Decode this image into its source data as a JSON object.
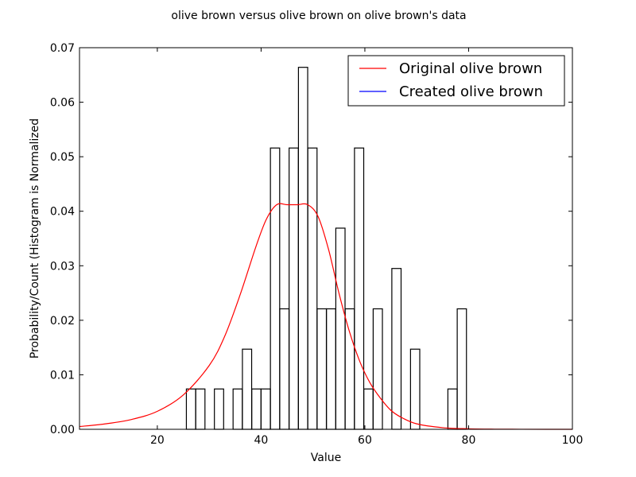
{
  "chart_data": {
    "type": "bar",
    "title": "olive brown versus olive brown on olive brown's data",
    "xlabel": "Value",
    "ylabel": "Probability/Count (Histogram is Normalized",
    "xlim": [
      5,
      100
    ],
    "ylim": [
      0,
      0.07
    ],
    "x_ticks": [
      20,
      40,
      60,
      80,
      100
    ],
    "x_tick_labels": [
      "20",
      "40",
      "60",
      "80",
      "100"
    ],
    "y_ticks": [
      0,
      0.01,
      0.02,
      0.03,
      0.04,
      0.05,
      0.06,
      0.07
    ],
    "y_tick_labels": [
      "0.00",
      "0.01",
      "0.02",
      "0.03",
      "0.04",
      "0.05",
      "0.06",
      "0.07"
    ],
    "grid": false,
    "legend_position": "top-right",
    "histogram": {
      "bin_width": 1.78,
      "edge_color": "#000000",
      "bins": [
        {
          "left": 25.6,
          "height": 0.0074
        },
        {
          "left": 27.4,
          "height": 0.0074
        },
        {
          "left": 31.0,
          "height": 0.0074
        },
        {
          "left": 34.6,
          "height": 0.0074
        },
        {
          "left": 36.4,
          "height": 0.0147
        },
        {
          "left": 38.2,
          "height": 0.0074
        },
        {
          "left": 40.0,
          "height": 0.0074
        },
        {
          "left": 41.8,
          "height": 0.0516
        },
        {
          "left": 43.6,
          "height": 0.0221
        },
        {
          "left": 45.4,
          "height": 0.0516
        },
        {
          "left": 47.2,
          "height": 0.0664
        },
        {
          "left": 49.0,
          "height": 0.0516
        },
        {
          "left": 50.8,
          "height": 0.0221
        },
        {
          "left": 52.6,
          "height": 0.0221
        },
        {
          "left": 54.4,
          "height": 0.0369
        },
        {
          "left": 56.2,
          "height": 0.0221
        },
        {
          "left": 58.0,
          "height": 0.0516
        },
        {
          "left": 59.8,
          "height": 0.0074
        },
        {
          "left": 61.6,
          "height": 0.0221
        },
        {
          "left": 65.2,
          "height": 0.0295
        },
        {
          "left": 68.8,
          "height": 0.0147
        },
        {
          "left": 76.0,
          "height": 0.0074
        },
        {
          "left": 77.8,
          "height": 0.0221
        }
      ]
    },
    "series": [
      {
        "name": "Original olive brown",
        "color": "#ff0000",
        "x": [
          5,
          10,
          15,
          20,
          25,
          30,
          33,
          36,
          39,
          41,
          43,
          45,
          47,
          49,
          51,
          53,
          55,
          57,
          59,
          61,
          63,
          65,
          67,
          70,
          75,
          80,
          85,
          90,
          95,
          100
        ],
        "y": [
          0.0005,
          0.001,
          0.0018,
          0.0033,
          0.0063,
          0.0117,
          0.0171,
          0.0248,
          0.0335,
          0.0385,
          0.0412,
          0.0412,
          0.0412,
          0.0412,
          0.039,
          0.033,
          0.025,
          0.018,
          0.0125,
          0.0085,
          0.0057,
          0.0035,
          0.0022,
          0.001,
          0.0003,
          0.0001,
          3e-05,
          1e-05,
          0.0,
          0.0
        ]
      },
      {
        "name": "Created olive brown",
        "color": "#0000ff",
        "x": [],
        "y": []
      }
    ]
  }
}
